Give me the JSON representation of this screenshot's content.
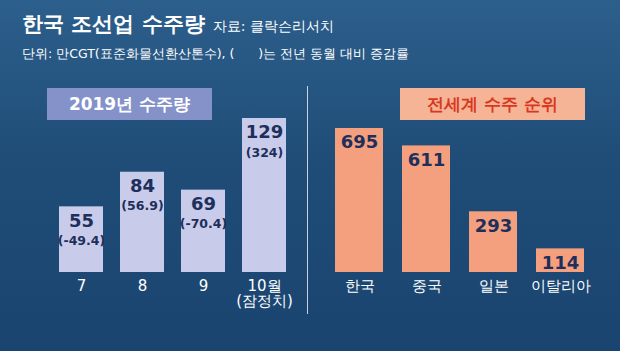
{
  "title": "한국 조선업 수주량",
  "source": "자료: 클락슨리서치",
  "note": "단위: 만CGT(표준화물선환산톤수), (      )는 전년 동월 대비 증감률",
  "chart_data": [
    {
      "type": "bar",
      "title": "2019년 수주량",
      "categories": [
        "7",
        "8",
        "9",
        "10월\n(잠정치)"
      ],
      "values": [
        55,
        84,
        69,
        129
      ],
      "changes": [
        -49.4,
        56.9,
        -70.4,
        324
      ],
      "change_labels": [
        "(-49.4)",
        "(56.9)",
        "(-70.4)",
        "(324)"
      ],
      "color": "#c9cbea",
      "ylim": [
        0,
        129
      ],
      "data_labels": true,
      "tick_labels": "x"
    },
    {
      "type": "bar",
      "title": "전세계 수주 순위",
      "categories": [
        "한국",
        "중국",
        "일본",
        "이탈리아"
      ],
      "values": [
        695,
        611,
        293,
        114
      ],
      "color": "#f4a07f",
      "ylim": [
        0,
        695
      ],
      "data_labels": true,
      "tick_labels": "x"
    }
  ]
}
